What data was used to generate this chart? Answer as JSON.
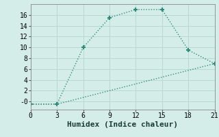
{
  "xlabel": "Humidex (Indice chaleur)",
  "line1_x": [
    0,
    3,
    6,
    9,
    12,
    15,
    18,
    21
  ],
  "line1_y": [
    -0.5,
    -0.5,
    10,
    15.5,
    17,
    17,
    9.5,
    7
  ],
  "line2_x": [
    0,
    3,
    21
  ],
  "line2_y": [
    -0.5,
    -0.5,
    7
  ],
  "line_color": "#2e8b7a",
  "bg_color": "#d4ede9",
  "grid_color": "#b8d8d4",
  "ylim": [
    -1.5,
    18
  ],
  "xlim": [
    0,
    21
  ],
  "yticks": [
    0,
    2,
    4,
    6,
    8,
    10,
    12,
    14,
    16
  ],
  "xticks": [
    0,
    3,
    6,
    9,
    12,
    15,
    18,
    21
  ],
  "marker": "+",
  "markersize": 5,
  "tick_fontsize": 7,
  "xlabel_fontsize": 8
}
